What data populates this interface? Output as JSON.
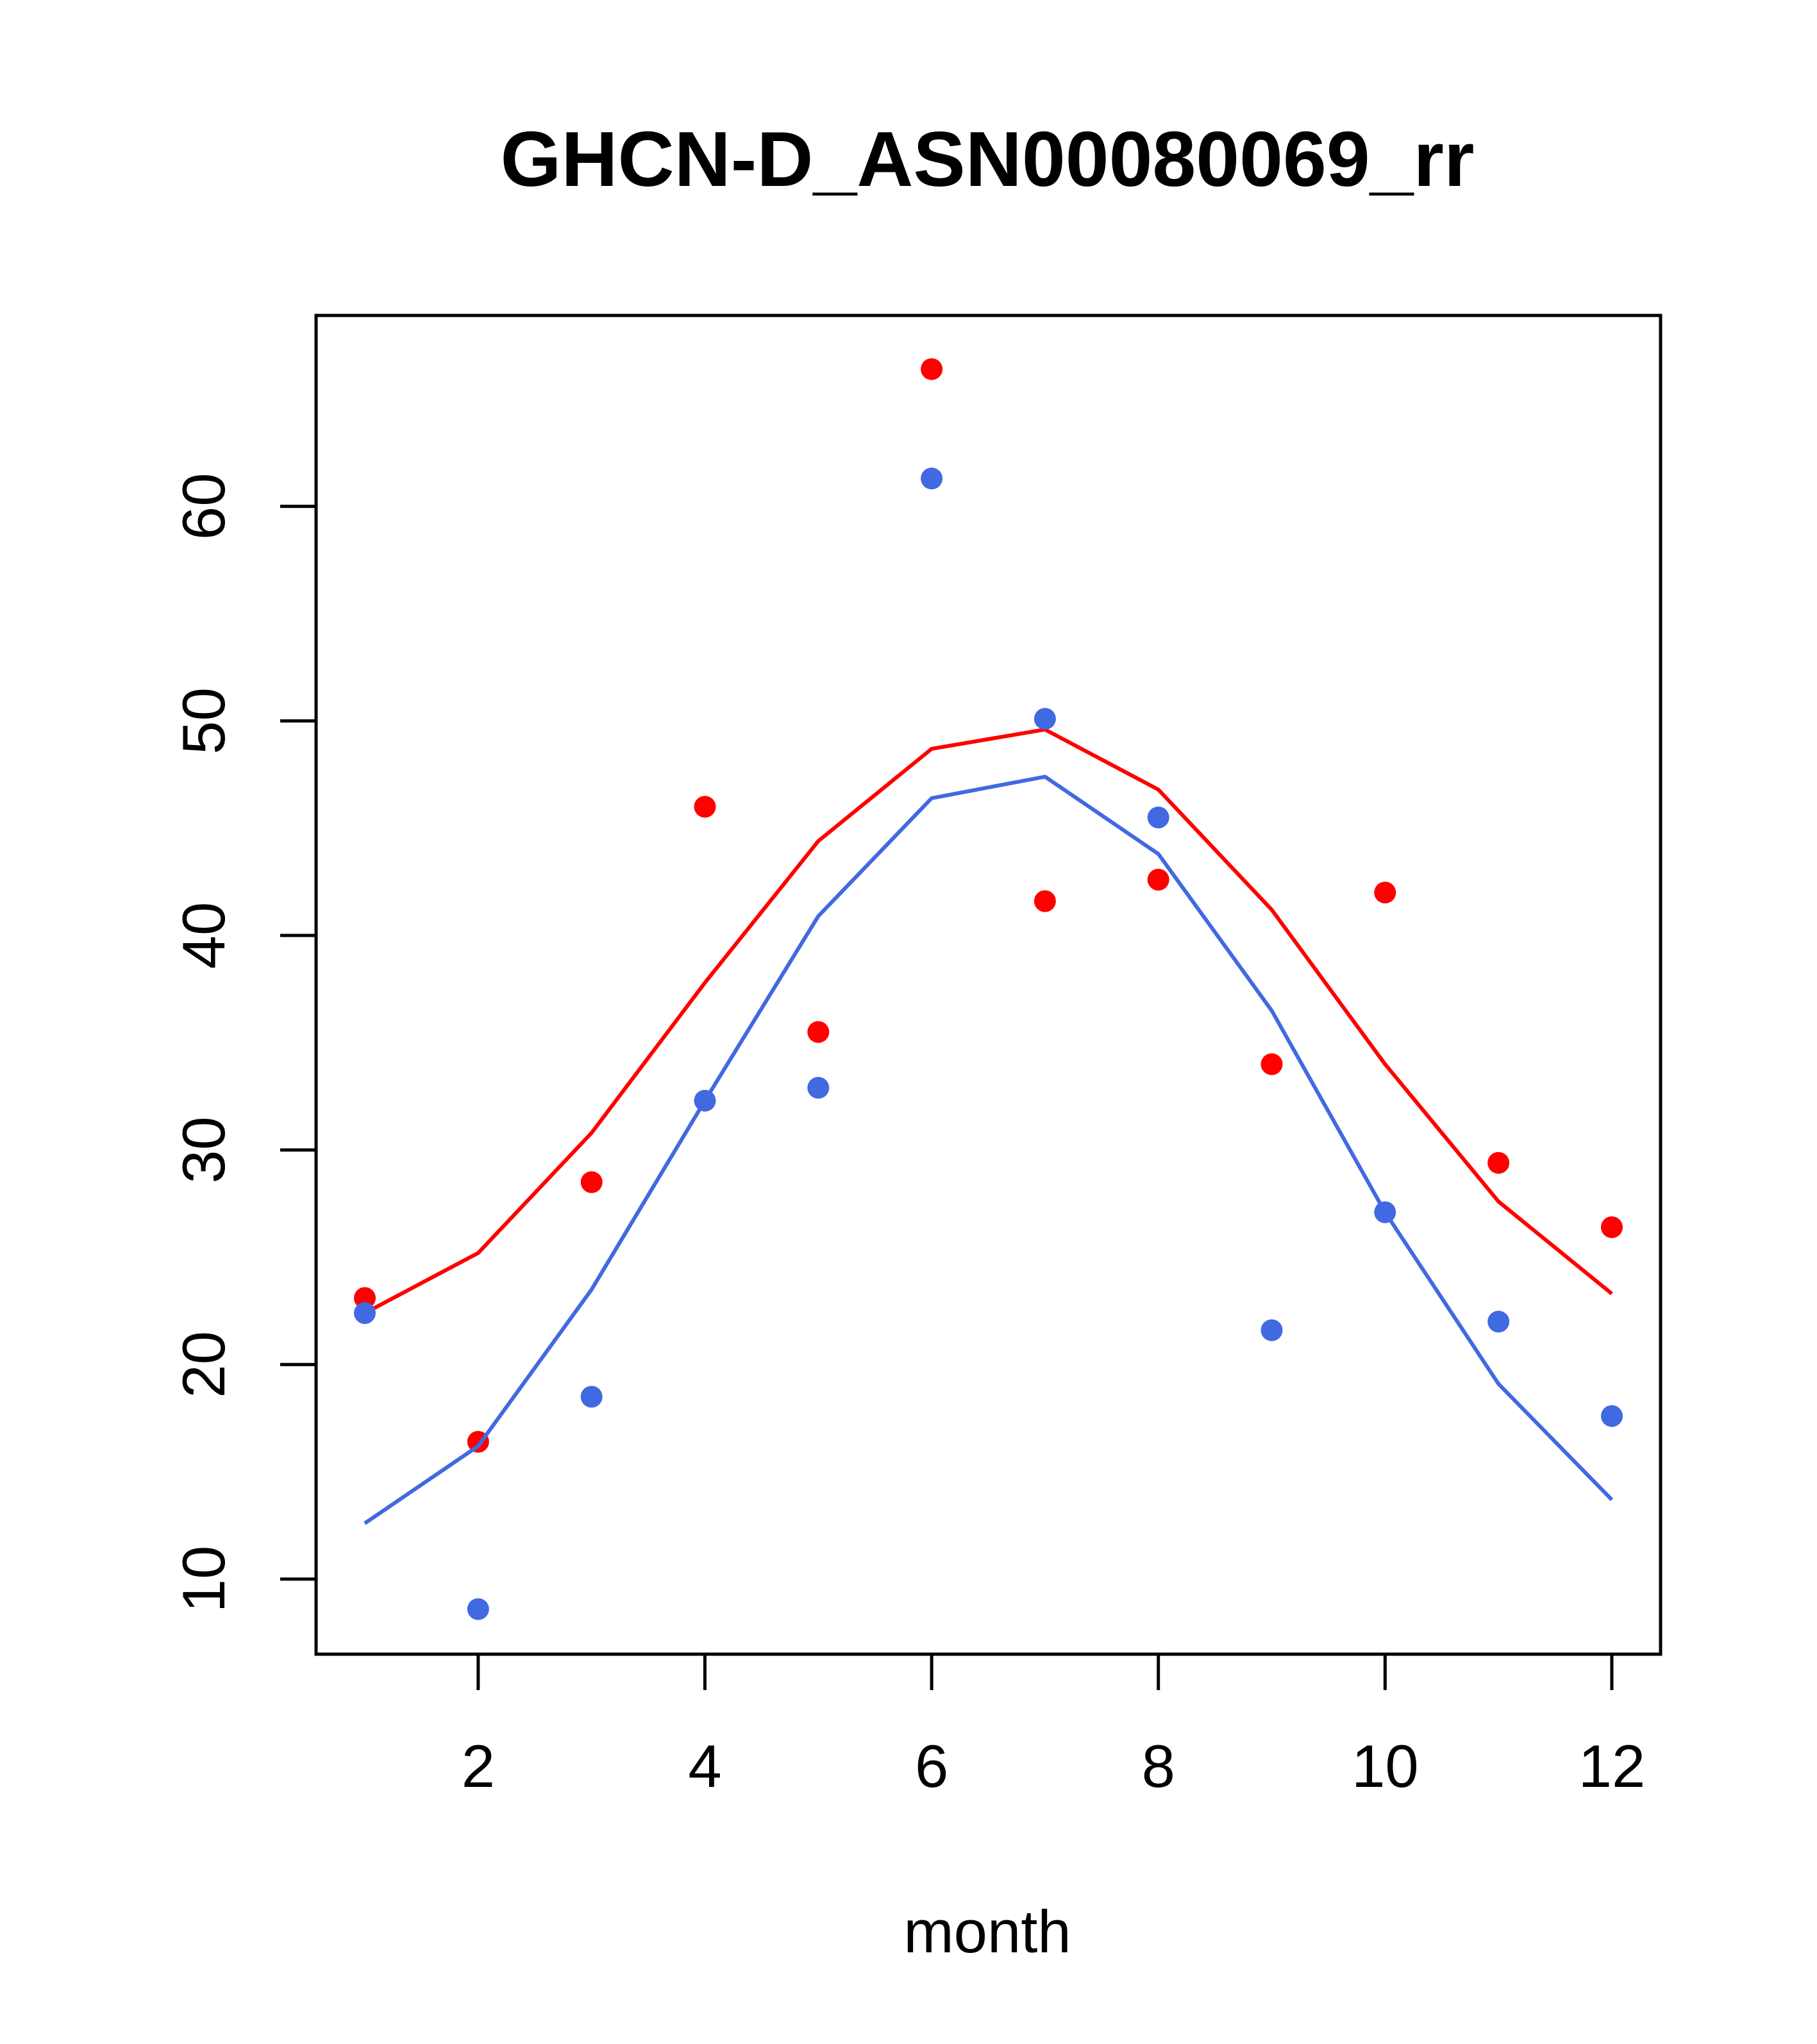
{
  "chart_data": {
    "type": "scatter",
    "title": "GHCN-D_ASN00080069_rr",
    "xlabel": "month",
    "ylabel": "",
    "xlim": [
      0.57,
      12.43
    ],
    "ylim": [
      6.5,
      68.9
    ],
    "x_ticks": [
      2,
      4,
      6,
      8,
      10,
      12
    ],
    "y_ticks": [
      10,
      20,
      30,
      40,
      50,
      60
    ],
    "grid": false,
    "legend": "none",
    "x": [
      1,
      2,
      3,
      4,
      5,
      6,
      7,
      8,
      9,
      10,
      11,
      12
    ],
    "series": [
      {
        "color": "#ff0000",
        "points": [
          23.1,
          16.4,
          28.5,
          46.0,
          35.5,
          66.4,
          41.6,
          42.6,
          34.0,
          42.0,
          29.4,
          26.4
        ],
        "line": [
          22.4,
          25.2,
          30.8,
          37.8,
          44.4,
          48.7,
          49.6,
          46.8,
          41.2,
          34.0,
          27.6,
          23.3
        ]
      },
      {
        "color": "#4169e1",
        "points": [
          22.4,
          8.6,
          18.5,
          32.3,
          32.9,
          61.3,
          50.1,
          45.5,
          21.6,
          27.1,
          22.0,
          17.6
        ],
        "line": [
          12.6,
          16.2,
          23.5,
          32.3,
          40.9,
          46.4,
          47.4,
          43.8,
          36.5,
          27.1,
          19.1,
          13.7
        ]
      }
    ]
  }
}
